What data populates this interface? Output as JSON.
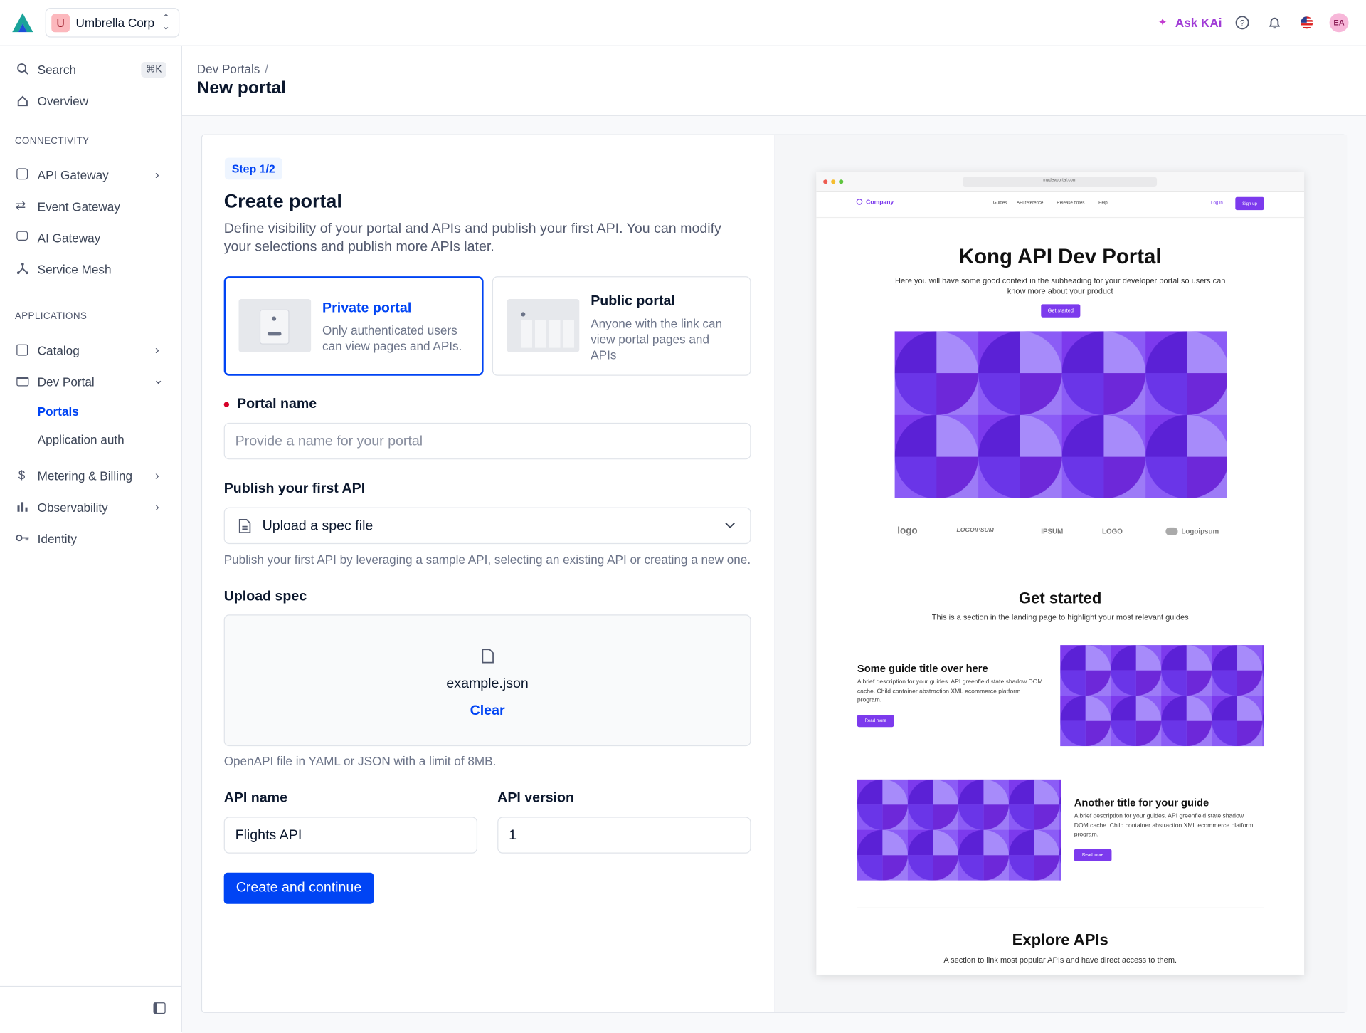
{
  "topbar": {
    "org_initial": "U",
    "org_name": "Umbrella Corp",
    "ask": "Ask KAi",
    "avatar": "EA"
  },
  "sidebar": {
    "search": "Search",
    "shortcut": "⌘K",
    "overview": "Overview",
    "sections": [
      {
        "title": "CONNECTIVITY",
        "items": [
          "API Gateway",
          "Event Gateway",
          "AI Gateway",
          "Service Mesh"
        ]
      },
      {
        "title": "APPLICATIONS",
        "items": [
          "Catalog",
          "Dev Portal",
          "Portals",
          "Application auth",
          "Metering & Billing",
          "Observability",
          "Identity"
        ]
      }
    ]
  },
  "header": {
    "breadcrumb": "Dev Portals",
    "separator": "/",
    "title": "New portal"
  },
  "form": {
    "step": "Step 1/2",
    "title": "Create portal",
    "description": "Define visibility of your portal and APIs and publish your first API. You can modify your selections and publish more APIs later.",
    "options": [
      {
        "title": "Private portal",
        "description": "Only authenticated users can view pages and APIs."
      },
      {
        "title": "Public portal",
        "description": "Anyone with the link can view portal pages and APIs"
      }
    ],
    "portal_name_label": "Portal name",
    "portal_name_placeholder": "Provide a name for your portal",
    "publish_label": "Publish your first API",
    "publish_value": "Upload a spec file",
    "publish_help": "Publish your first API by leveraging a sample API, selecting an existing API or creating a new one.",
    "upload_label": "Upload spec",
    "file_name": "example.json",
    "clear": "Clear",
    "upload_help": "OpenAPI file in YAML or JSON with a limit of 8MB.",
    "api_name_label": "API name",
    "api_name_value": "Flights API",
    "api_version_label": "API version",
    "api_version_value": "1",
    "submit": "Create and continue"
  },
  "preview": {
    "url": "mydevportal.com",
    "brand": "Company",
    "nav": [
      "Guides",
      "API reference",
      "Release notes",
      "Help"
    ],
    "login": "Log in",
    "signup": "Sign up",
    "hero_title": "Kong API Dev Portal",
    "hero_subtitle": "Here you will have some good context in the subheading for your developer portal so users can know more about your product",
    "hero_button": "Get started",
    "logos": [
      "logo",
      "LOGOIPSUM",
      "IPSUM",
      "LOGO",
      "Logoipsum"
    ],
    "section_title": "Get started",
    "section_subtitle": "This is a section in the landing page to highlight your most relevant guides",
    "guides": [
      {
        "title": "Some guide title over here",
        "description": "A brief description for your guides. API greenfield state shadow DOM cache. Child container abstraction XML ecommerce platform program.",
        "button": "Read more"
      },
      {
        "title": "Another title for your guide",
        "description": "A brief description for your guides. API greenfield state shadow DOM cache. Child container abstraction XML ecommerce platform program.",
        "button": "Read more"
      }
    ],
    "explore_title": "Explore APIs",
    "explore_subtitle": "A section to link most popular APIs and have direct access to them."
  }
}
